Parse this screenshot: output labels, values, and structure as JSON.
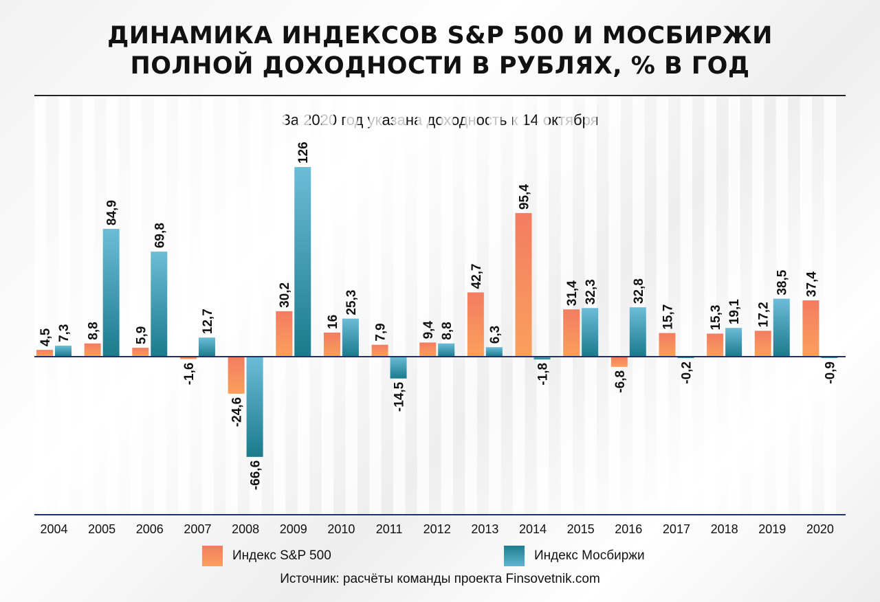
{
  "title_line1": "ДИНАМИКА ИНДЕКСОВ S&P 500 И МОСБИРЖИ",
  "title_line2": "ПОЛНОЙ ДОХОДНОСТИ В РУБЛЯХ, % В ГОД",
  "subtitle": "За 2020 год указана доходность к 14 октября",
  "source": "Источник: расчёты команды проекта Finsovetnik.com",
  "colors": {
    "sp500_top": "#f37c61",
    "sp500_bottom": "#fba05d",
    "moex_top": "#6cbcd8",
    "moex_bottom": "#1b7a8c",
    "axis": "#1f2f6a"
  },
  "chart_data": {
    "type": "bar",
    "categories": [
      "2004",
      "2005",
      "2006",
      "2007",
      "2008",
      "2009",
      "2010",
      "2011",
      "2012",
      "2013",
      "2014",
      "2015",
      "2016",
      "2017",
      "2018",
      "2019",
      "2020"
    ],
    "ylim": [
      -80,
      135
    ],
    "legend_placement": "bottom",
    "series": [
      {
        "name": "Индекс S&P 500",
        "values": [
          4.5,
          8.8,
          5.9,
          -1.6,
          -24.6,
          30.2,
          16,
          7.9,
          9.4,
          42.7,
          95.4,
          31.4,
          -6.8,
          15.7,
          15.3,
          17.2,
          37.4
        ],
        "labels": [
          "4,5",
          "8,8",
          "5,9",
          "-1,6",
          "-24,6",
          "30,2",
          "16",
          "7,9",
          "9,4",
          "42,7",
          "95,4",
          "31,4",
          "-6,8",
          "15,7",
          "15,3",
          "17,2",
          "37,4"
        ]
      },
      {
        "name": "Индекс Мосбиржи",
        "values": [
          7.3,
          84.9,
          69.8,
          12.7,
          -66.6,
          126,
          25.3,
          -14.5,
          8.8,
          6.3,
          -1.8,
          32.3,
          32.8,
          -0.2,
          19.1,
          38.5,
          -0.9
        ],
        "labels": [
          "7,3",
          "84,9",
          "69,8",
          "12,7",
          "-66,6",
          "126",
          "25,3",
          "-14,5",
          "8,8",
          "6,3",
          "-1,8",
          "32,3",
          "32,8",
          "-0,2",
          "19,1",
          "38,5",
          "-0,9"
        ]
      }
    ]
  }
}
